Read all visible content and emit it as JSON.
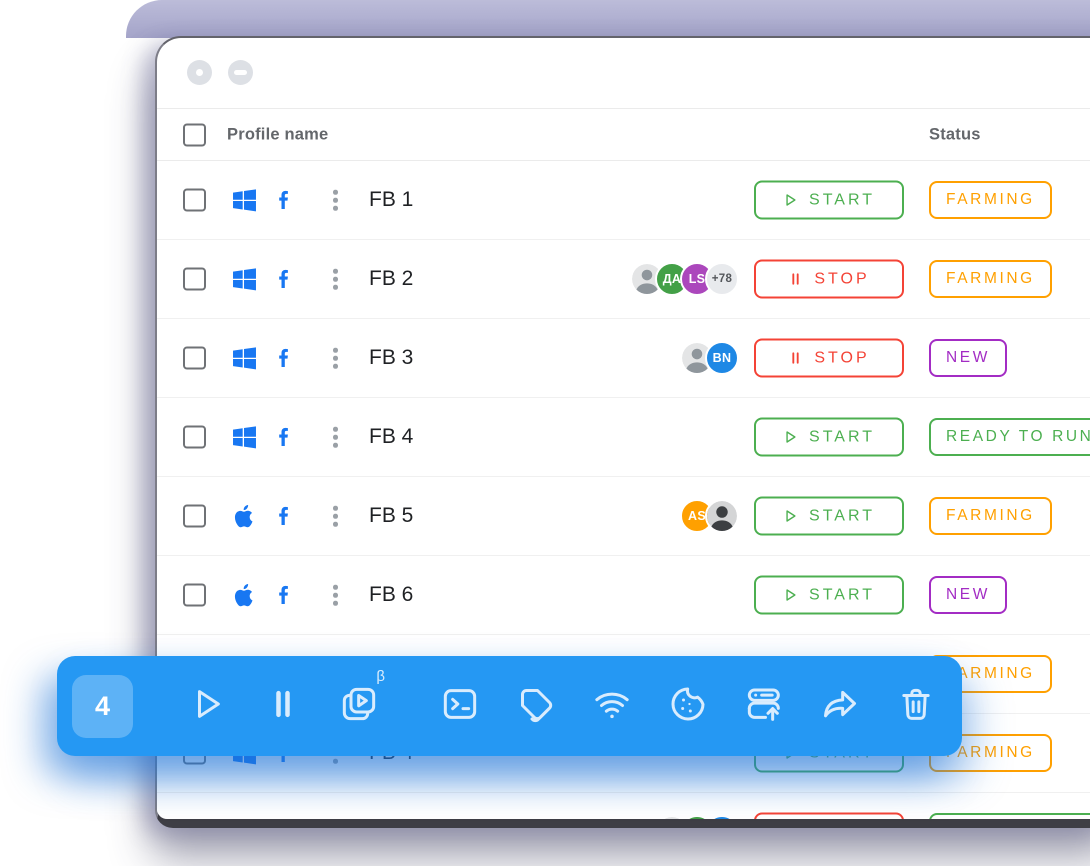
{
  "window": {
    "controls": [
      {
        "name": "dot"
      },
      {
        "name": "minimize"
      }
    ]
  },
  "table": {
    "headers": {
      "profile": "Profile name",
      "status": "Status"
    },
    "action_colors": {
      "START": "#4CAF50",
      "STOP": "#F44336"
    },
    "status_colors": {
      "FARMING": "#FFA000",
      "NEW": "#A32CC4",
      "READY TO RUN": "#4CAF50",
      "": "#4CAF50"
    },
    "rows": [
      {
        "name": "FB 1",
        "os": "windows",
        "browser": "facebook",
        "avatars": [],
        "action": "START",
        "status": "FARMING"
      },
      {
        "name": "FB 2",
        "os": "windows",
        "browser": "facebook",
        "avatars": [
          {
            "kind": "photo",
            "variant": "light"
          },
          {
            "kind": "initials",
            "text": "ДА",
            "bg": "#43A047"
          },
          {
            "kind": "initials",
            "text": "LS",
            "bg": "#AB47BC"
          },
          {
            "kind": "count",
            "text": "+78",
            "bg": "#E8EAED"
          }
        ],
        "action": "STOP",
        "status": "FARMING"
      },
      {
        "name": "FB 3",
        "os": "windows",
        "browser": "facebook",
        "avatars": [
          {
            "kind": "photo",
            "variant": "light"
          },
          {
            "kind": "initials",
            "text": "BN",
            "bg": "#1E88E5"
          }
        ],
        "action": "STOP",
        "status": "NEW"
      },
      {
        "name": "FB 4",
        "os": "windows",
        "browser": "facebook",
        "avatars": [],
        "action": "START",
        "status": "READY TO RUN"
      },
      {
        "name": "FB 5",
        "os": "apple",
        "browser": "facebook",
        "avatars": [
          {
            "kind": "initials",
            "text": "AS",
            "bg": "#FFA000"
          },
          {
            "kind": "photo",
            "variant": "dark"
          }
        ],
        "action": "START",
        "status": "FARMING"
      },
      {
        "name": "FB 6",
        "os": "apple",
        "browser": "facebook",
        "avatars": [],
        "action": "START",
        "status": "NEW"
      },
      {
        "name": "",
        "os": "",
        "browser": "",
        "avatars": [],
        "action": "",
        "status": "FARMING",
        "covered": true
      },
      {
        "name": "FB 4",
        "os": "windows",
        "browser": "facebook",
        "avatars": [],
        "action": "START",
        "status": "FARMING"
      },
      {
        "name": "",
        "os": "apple",
        "browser": "facebook",
        "avatars": [
          {
            "kind": "photo",
            "variant": "light"
          },
          {
            "kind": "initials",
            "text": "",
            "bg": "#43A047"
          },
          {
            "kind": "initials",
            "text": "",
            "bg": "#1E88E5"
          }
        ],
        "action": "STOP",
        "status": "",
        "cut": true
      }
    ]
  },
  "toolbar": {
    "count": "4",
    "beta_label": "β",
    "buttons": [
      {
        "name": "run"
      },
      {
        "name": "pause"
      },
      {
        "name": "automation",
        "beta": true
      },
      {
        "name": "console"
      },
      {
        "name": "tags"
      },
      {
        "name": "proxy"
      },
      {
        "name": "cookies"
      },
      {
        "name": "import"
      },
      {
        "name": "share"
      },
      {
        "name": "delete"
      }
    ]
  }
}
